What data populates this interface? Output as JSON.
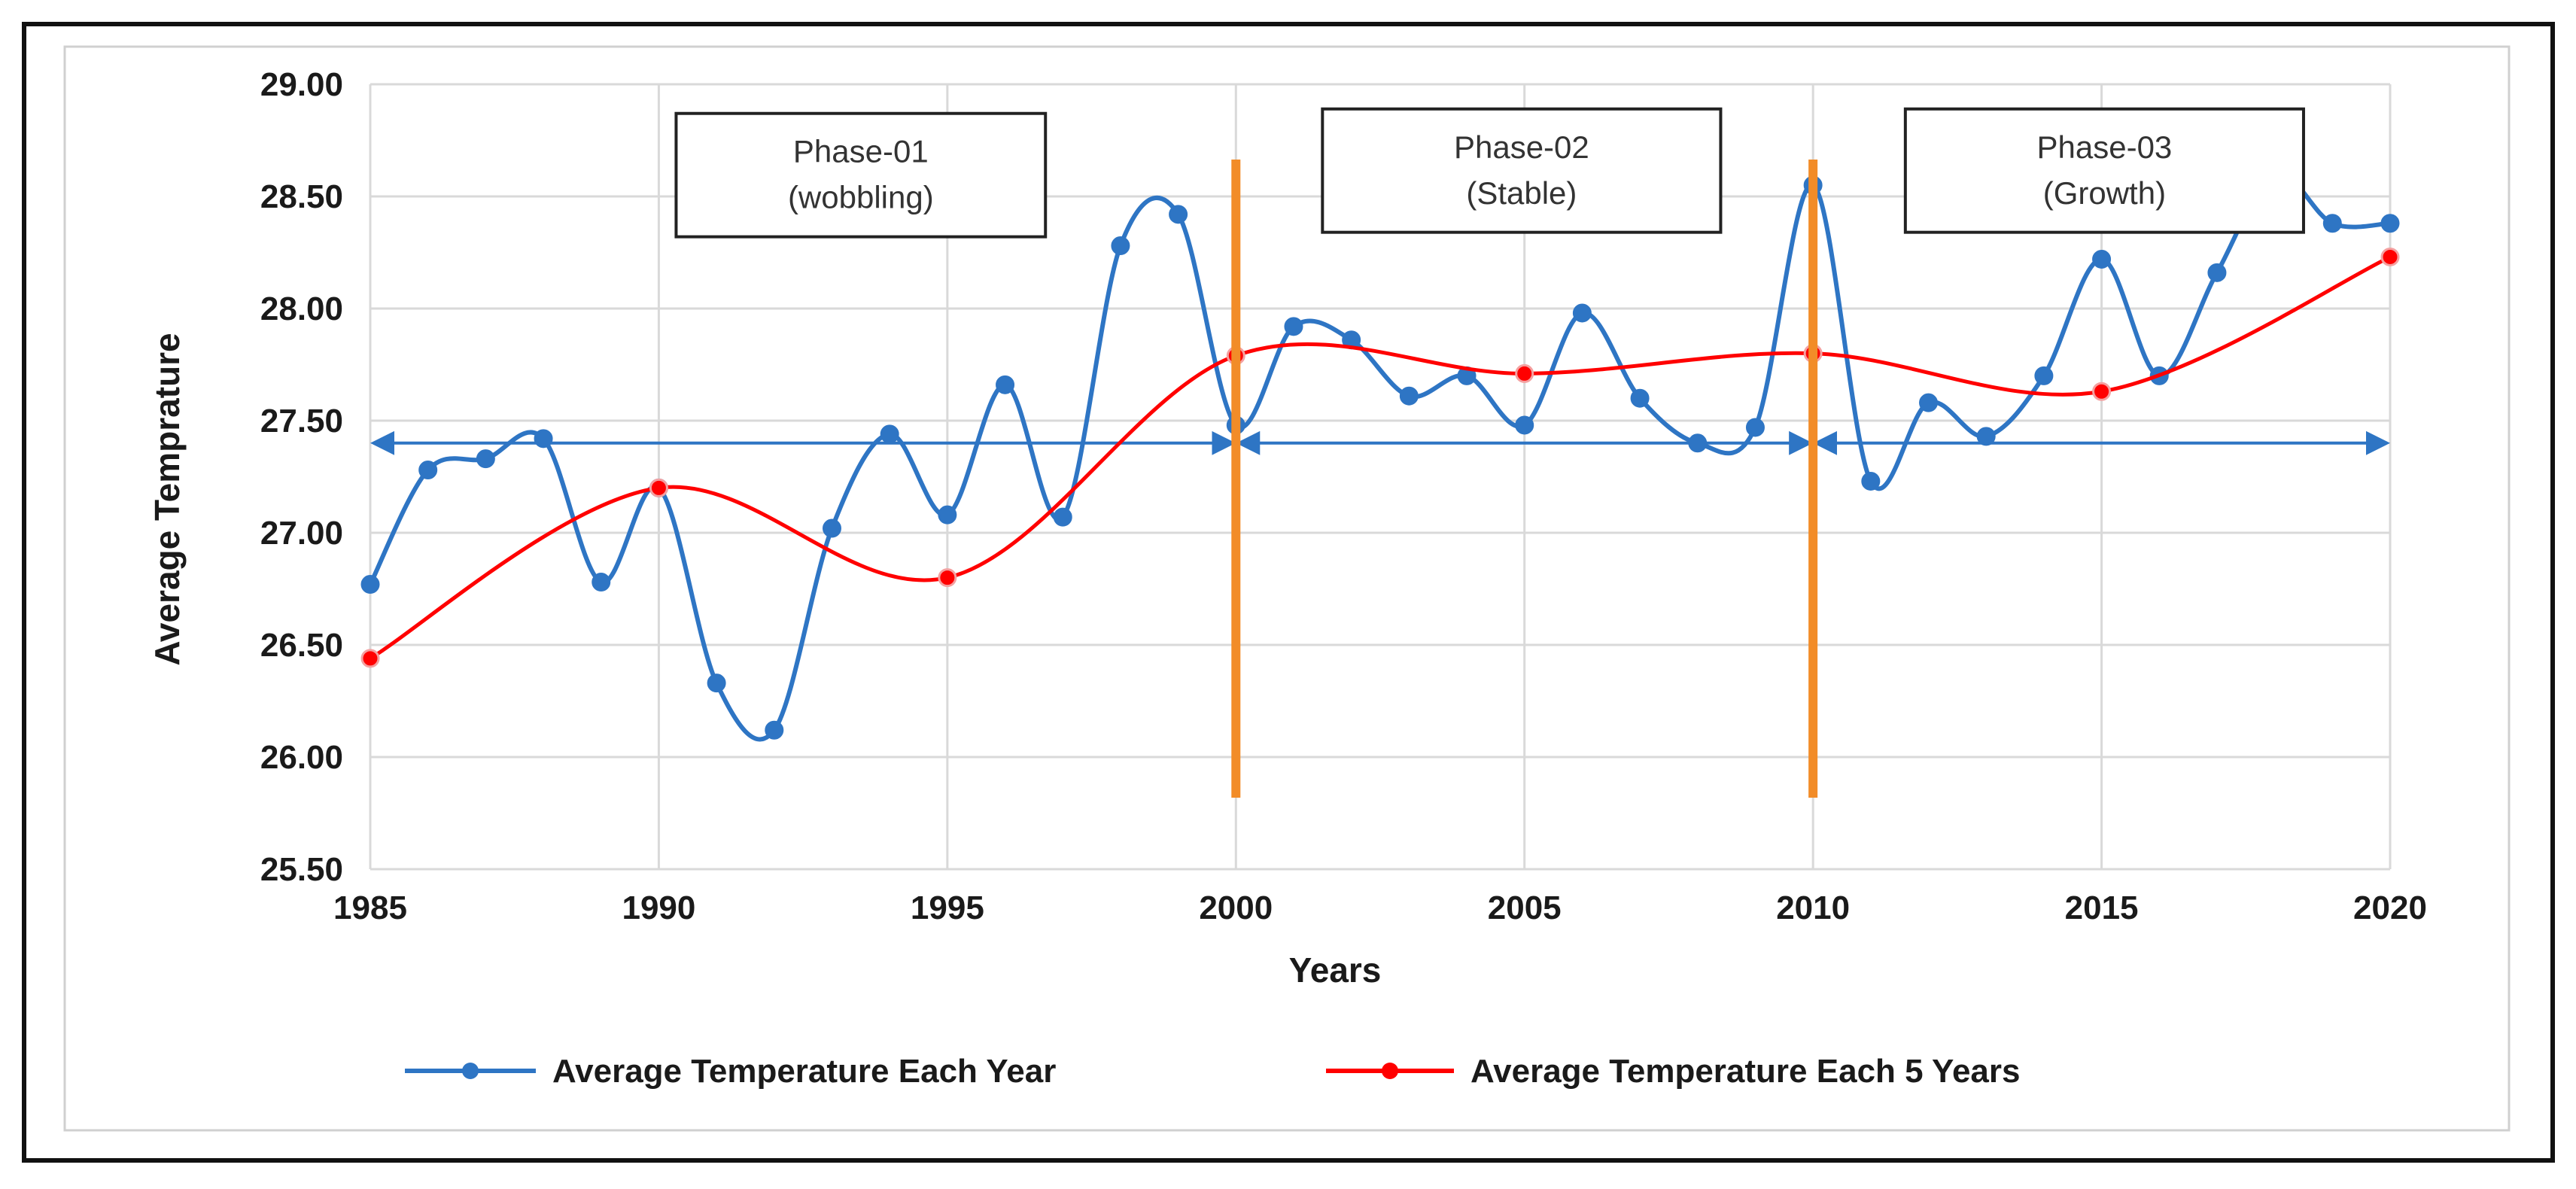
{
  "chart_data": {
    "type": "line",
    "xlabel": "Years",
    "ylabel": "Average Temprature",
    "xlim": [
      1985,
      2020
    ],
    "ylim": [
      25.5,
      29.0
    ],
    "x_ticks": [
      1985,
      1990,
      1995,
      2000,
      2005,
      2010,
      2015,
      2020
    ],
    "y_ticks": [
      25.5,
      26.0,
      26.5,
      27.0,
      27.5,
      28.0,
      28.5,
      29.0
    ],
    "grid": true,
    "legend_position": "bottom",
    "series": [
      {
        "name": "Average Temperature Each Year",
        "color": "#2e75c4",
        "smooth": true,
        "x": [
          1985,
          1986,
          1987,
          1988,
          1989,
          1990,
          1991,
          1992,
          1993,
          1994,
          1995,
          1996,
          1997,
          1998,
          1999,
          2000,
          2001,
          2002,
          2003,
          2004,
          2005,
          2006,
          2007,
          2008,
          2009,
          2010,
          2011,
          2012,
          2013,
          2014,
          2015,
          2016,
          2017,
          2018,
          2019,
          2020
        ],
        "values": [
          26.77,
          27.28,
          27.33,
          27.42,
          26.78,
          27.2,
          26.33,
          26.12,
          27.02,
          27.44,
          27.08,
          27.66,
          27.07,
          28.28,
          28.42,
          27.48,
          27.92,
          27.86,
          27.61,
          27.7,
          27.48,
          27.98,
          27.6,
          27.4,
          27.47,
          28.55,
          27.23,
          27.58,
          27.43,
          27.7,
          28.22,
          27.7,
          28.16,
          28.6,
          28.38,
          28.38
        ]
      },
      {
        "name": "Average Temperature Each 5 Years",
        "color": "#ff0000",
        "smooth": true,
        "x": [
          1985,
          1990,
          1995,
          2000,
          2005,
          2010,
          2015,
          2020
        ],
        "values": [
          26.44,
          27.2,
          26.8,
          27.79,
          27.71,
          27.8,
          27.63,
          28.23
        ]
      }
    ],
    "phase_dividers": [
      2000,
      2010
    ],
    "phase_divider_color": "#f28c28",
    "phases": [
      {
        "line1": "Phase-01",
        "line2": "(wobbling)"
      },
      {
        "line1": "Phase-02",
        "line2": "(Stable)"
      },
      {
        "line1": "Phase-03",
        "line2": "(Growth)"
      }
    ],
    "reference_level": 27.4
  }
}
